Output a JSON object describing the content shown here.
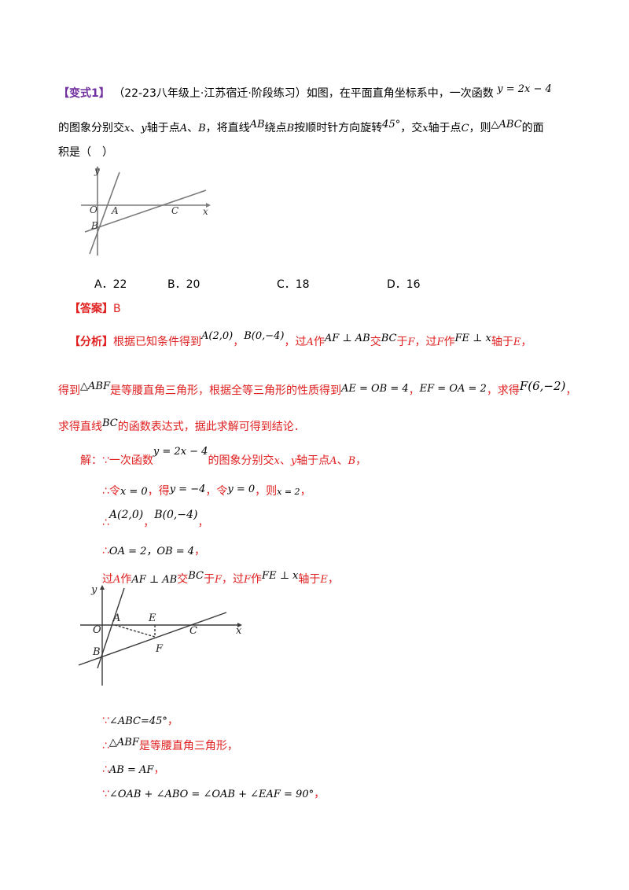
{
  "question": {
    "tag": "【变式1】",
    "source": "（22-23八年级上·江苏宿迁·阶段练习）",
    "line1_text": "如图，在平面直角坐标系中，一次函数",
    "line1_math": "y = 2x − 4",
    "line2_a": "的图象分别交",
    "line2_x": "x",
    "line2_b": "、",
    "line2_y": "y",
    "line2_c": "轴于点",
    "line2_A": "A",
    "line2_d": "、",
    "line2_B": "B",
    "line2_e": "，将直线",
    "line2_AB": "AB",
    "line2_f": "绕点",
    "line2_B2": "B",
    "line2_g": "按顺时针方向旋转",
    "line2_deg": "45°",
    "line2_h": "，交",
    "line2_x2": "x",
    "line2_i": "轴于点",
    "line2_C": "C",
    "line2_j": "，则",
    "line2_tri": "△ABC",
    "line2_k": "的面",
    "line3": "积是（　）"
  },
  "figure1": {
    "y_label": "y",
    "x_label": "x",
    "o_label": "O",
    "a_label": "A",
    "b_label": "B",
    "c_label": "C"
  },
  "options": [
    {
      "label": "A．22"
    },
    {
      "label": "B．20"
    },
    {
      "label": "C．18"
    },
    {
      "label": "D．16"
    }
  ],
  "answer": {
    "tag": "【答案】",
    "value": "B"
  },
  "analysis": {
    "tag": "【分析】",
    "p1_a": "根据已知条件得到",
    "p1_m1": "A(2,0)",
    "p1_b": "，",
    "p1_m2": "B(0,−4)",
    "p1_c": "，过",
    "p1_A": "A",
    "p1_d": "作",
    "p1_m3": "AF ⊥ AB",
    "p1_e": "交",
    "p1_m4": "BC",
    "p1_f": "于",
    "p1_F": "F",
    "p1_g": "，过",
    "p1_F2": "F",
    "p1_h": "作",
    "p1_m5": "FE ⊥ x",
    "p1_i": "轴于",
    "p1_E": "E",
    "p1_j": "，",
    "p2_a": "得到",
    "p2_m1": "△ABF",
    "p2_b": "是等腰直角三角形，根据全等三角形的性质得到",
    "p2_m2": "AE = OB = 4",
    "p2_c": "，",
    "p2_m3": "EF = OA = 2",
    "p2_d": "，求得",
    "p2_m4": "F(6,−2)",
    "p2_e": "，",
    "p3_a": "求得直线",
    "p3_m1": "BC",
    "p3_b": "的函数表达式，据此求解可得到结论．"
  },
  "solution": {
    "s1_a": "解：∵一次函数",
    "s1_m": "y = 2x − 4",
    "s1_b": "的图象分别交",
    "s1_x": "x",
    "s1_c": "、",
    "s1_y": "y",
    "s1_d": "轴于点",
    "s1_A": "A",
    "s1_e": "、",
    "s1_B": "B",
    "s1_f": "，",
    "s2_a": "∴令",
    "s2_m1": "x = 0",
    "s2_b": "，得",
    "s2_m2": "y = −4",
    "s2_c": "，令",
    "s2_m3": "y = 0",
    "s2_d": "，则",
    "s2_m4": "x = 2",
    "s2_e": "，",
    "s3_a": "∴",
    "s3_m1": "A(2,0)",
    "s3_b": "，",
    "s3_m2": "B(0,−4)",
    "s3_c": "，",
    "s4_a": "∴",
    "s4_m": "OA = 2，OB = 4",
    "s4_b": "，",
    "s5_a": "过",
    "s5_A": "A",
    "s5_b": "作",
    "s5_m1": "AF ⊥ AB",
    "s5_c": "交",
    "s5_m2": "BC",
    "s5_d": "于",
    "s5_F": "F",
    "s5_e": "，过",
    "s5_F2": "F",
    "s5_f": "作",
    "s5_m3": "FE ⊥ x",
    "s5_g": "轴于",
    "s5_E": "E",
    "s5_h": "，",
    "s6_a": "∵",
    "s6_m": "∠ABC=45°",
    "s6_b": "，",
    "s7_a": "∴",
    "s7_m": "△ABF",
    "s7_b": "是等腰直角三角形，",
    "s8_a": "∴",
    "s8_m": "AB = AF",
    "s8_b": "，",
    "s9_a": "∵",
    "s9_m": "∠OAB + ∠ABO = ∠OAB + ∠EAF = 90°",
    "s9_b": "，"
  },
  "figure2": {
    "y_label": "y",
    "x_label": "x",
    "o_label": "O",
    "a_label": "A",
    "b_label": "B",
    "c_label": "C",
    "e_label": "E",
    "f_label": "F"
  }
}
